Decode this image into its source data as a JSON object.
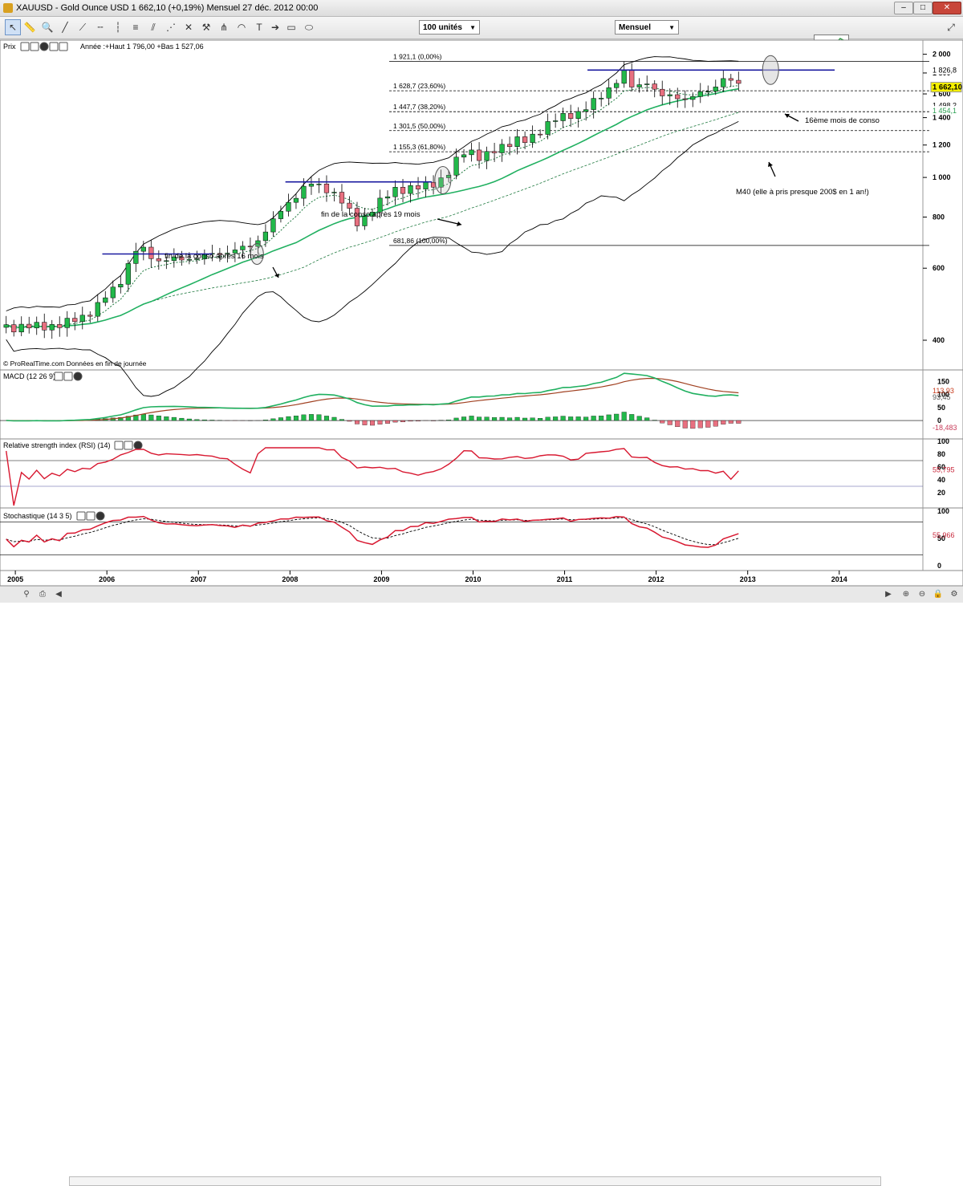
{
  "window": {
    "title": "XAUUSD - Gold Ounce USD    1 662,10 (+0,19%)    Mensuel  27 déc. 2012 00:00"
  },
  "toolbar": {
    "units_value": "100 unités",
    "period_value": "Mensuel",
    "tools": [
      "cursor-icon",
      "ruler-icon",
      "zoom-icon",
      "line-icon",
      "ray-icon",
      "horizontal-line-icon",
      "vertical-line-icon",
      "fibonacci-icon",
      "channel-icon",
      "fan-icon",
      "gann-icon",
      "arc-icon",
      "text-icon",
      "arrow-icon",
      "rectangle-icon",
      "ellipse-icon"
    ]
  },
  "price_panel": {
    "header_name": "Prix",
    "header_info": "Année :+Haut 1 796,00 +Bas 1 527,06",
    "footer": "© ProRealTime.com  Données en fin de journée",
    "current_price": "1 662,10",
    "current_price_color": "#f5f000",
    "right_labels": [
      {
        "text": "1 826,8",
        "price": 1826.8,
        "color": "#000000",
        "bg": "#ffffff"
      },
      {
        "text": "1 498,2",
        "price": 1498.2,
        "color": "#000000",
        "bg": "#ffffff"
      },
      {
        "text": "1 454,1",
        "price": 1454.1,
        "color": "#2aa050",
        "bg": "#ffffff"
      }
    ],
    "fib_levels": [
      {
        "label": "1 921,1 (0,00%)",
        "price": 1921.1
      },
      {
        "label": "1 628,7 (23,60%)",
        "price": 1628.7
      },
      {
        "label": "1 447,7 (38,20%)",
        "price": 1447.7
      },
      {
        "label": "1 301,5 (50,00%)",
        "price": 1301.5
      },
      {
        "label": "1 155,3 (61,80%)",
        "price": 1155.3
      },
      {
        "label": "681,86 (100,00%)",
        "price": 681.86
      }
    ],
    "annotations": [
      "fin de la conso après 16 mois",
      "fin de la conso après 19 mois",
      "16ème mois de conso",
      "M40 (elle à pris presque 200$ en 1 an!)"
    ]
  },
  "macd_panel": {
    "header_name": "MACD (12 26 9)",
    "labels": [
      "113,93",
      "93,45",
      "-18,483"
    ],
    "label_colors": [
      "#c83c1e",
      "#555555",
      "#c83c5a"
    ]
  },
  "rsi_panel": {
    "header_name": "Relative strength index (RSI) (14)",
    "label": "55,795",
    "label_color": "#c8283c"
  },
  "stoch_panel": {
    "header_name": "Stochastique (14 3 5)",
    "label": "55,966",
    "label_color": "#c8283c"
  },
  "colors": {
    "bull": "#22b84a",
    "bear": "#e87080",
    "ma_fast": "#20b060",
    "ma_slow": "#207a40",
    "bollinger": "#000000",
    "resistance": "#1a1aa0",
    "macd_line": "#20b060",
    "signal_line": "#a04020",
    "rsi_line": "#d81830",
    "stoch_k": "#d81830",
    "stoch_k_up": "#50d030"
  },
  "chart_data": {
    "type": "candlestick",
    "symbol": "XAUUSD",
    "name": "Gold Ounce USD",
    "period": "Mensuel",
    "x_ticks": [
      "2005",
      "2006",
      "2007",
      "2008",
      "2009",
      "2010",
      "2011",
      "2012",
      "2013",
      "2014"
    ],
    "x_range": [
      2004.85,
      2014.3
    ],
    "y_ticks": [
      400,
      600,
      800,
      1000,
      1200,
      1400,
      1600,
      1800,
      2000
    ],
    "y_range": [
      340,
      2070
    ],
    "resistance_lines": [
      {
        "price": 650,
        "from": 2005.95,
        "to": 2007.15
      },
      {
        "price": 975,
        "from": 2007.95,
        "to": 2009.55
      },
      {
        "price": 1830,
        "from": 2011.25,
        "to": 2013.95
      }
    ],
    "anchors": [
      {
        "t": 2004.9,
        "close": 430
      },
      {
        "t": 2005.5,
        "close": 435
      },
      {
        "t": 2005.85,
        "close": 470
      },
      {
        "t": 2006.15,
        "close": 560
      },
      {
        "t": 2006.35,
        "close": 680
      },
      {
        "t": 2006.55,
        "close": 625
      },
      {
        "t": 2006.95,
        "close": 635
      },
      {
        "t": 2007.4,
        "close": 665
      },
      {
        "t": 2007.6,
        "close": 680
      },
      {
        "t": 2007.85,
        "close": 800
      },
      {
        "t": 2008.2,
        "close": 970
      },
      {
        "t": 2008.5,
        "close": 915
      },
      {
        "t": 2008.75,
        "close": 760
      },
      {
        "t": 2008.85,
        "close": 820
      },
      {
        "t": 2009.15,
        "close": 935
      },
      {
        "t": 2009.45,
        "close": 945
      },
      {
        "t": 2009.7,
        "close": 1000
      },
      {
        "t": 2009.93,
        "close": 1180
      },
      {
        "t": 2010.1,
        "close": 1110
      },
      {
        "t": 2010.45,
        "close": 1240
      },
      {
        "t": 2010.6,
        "close": 1220
      },
      {
        "t": 2010.85,
        "close": 1380
      },
      {
        "t": 2011.1,
        "close": 1420
      },
      {
        "t": 2011.4,
        "close": 1570
      },
      {
        "t": 2011.65,
        "close": 1810
      },
      {
        "t": 2011.75,
        "close": 1630
      },
      {
        "t": 2011.9,
        "close": 1720
      },
      {
        "t": 2012.05,
        "close": 1580
      },
      {
        "t": 2012.35,
        "close": 1560
      },
      {
        "t": 2012.45,
        "close": 1600
      },
      {
        "t": 2012.6,
        "close": 1620
      },
      {
        "t": 2012.72,
        "close": 1760
      },
      {
        "t": 2012.83,
        "close": 1720
      },
      {
        "t": 2012.92,
        "close": 1662
      }
    ]
  }
}
